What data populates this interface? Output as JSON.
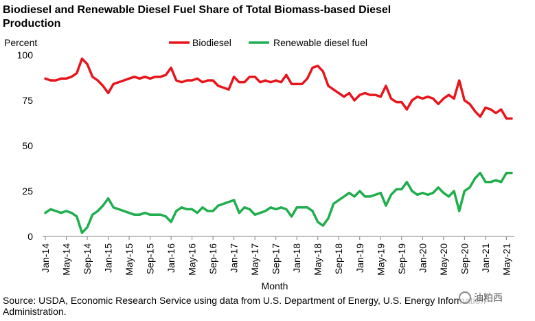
{
  "page": {
    "title": "Biodiesel and Renewable Diesel Fuel Share of Total Biomass-based Diesel Production",
    "source": "Source: USDA, Economic Research Service using data from U.S. Department of Energy, U.S. Energy Information Administration.",
    "watermark": "油粕西"
  },
  "chart_data": {
    "type": "line",
    "ylabel": "Percent",
    "xlabel": "Month",
    "ylim": [
      0,
      100
    ],
    "yticks": [
      0,
      25,
      50,
      75,
      100
    ],
    "grid": false,
    "legend_position": "top",
    "x_tick_labels": [
      "Jan-14",
      "May-14",
      "Sep-14",
      "Jan-15",
      "May-15",
      "Sep-15",
      "Jan-16",
      "May-16",
      "Sep-16",
      "Jan-17",
      "May-17",
      "Sep-17",
      "Jan-18",
      "May-18",
      "Sep-18",
      "Jan-19",
      "May-19",
      "Sep-19",
      "Jan-20",
      "May-20",
      "Sep-20",
      "Jan-21",
      "May-21"
    ],
    "x_start": "Jan-14",
    "x_end": "Oct-21",
    "series": [
      {
        "name": "Biodiesel",
        "color": "#e8141b",
        "values": [
          87,
          86,
          86,
          87,
          87,
          88,
          90,
          98,
          95,
          88,
          86,
          83,
          79,
          84,
          85,
          86,
          87,
          88,
          87,
          88,
          87,
          88,
          88,
          89,
          93,
          86,
          85,
          86,
          86,
          87,
          85,
          86,
          86,
          83,
          82,
          81,
          88,
          85,
          85,
          88,
          88,
          85,
          86,
          85,
          86,
          85,
          89,
          84,
          84,
          84,
          87,
          93,
          94,
          91,
          83,
          81,
          79,
          77,
          79,
          75,
          78,
          79,
          78,
          78,
          77,
          83,
          76,
          74,
          74,
          70,
          75,
          77,
          76,
          77,
          76,
          73,
          76,
          78,
          76,
          86,
          75,
          73,
          69,
          66,
          71,
          70,
          68,
          70,
          65,
          65
        ],
        "x_start": "Jan-14"
      },
      {
        "name": "Renewable diesel fuel",
        "color": "#1fae4d",
        "values": [
          13,
          15,
          14,
          13,
          14,
          13,
          11,
          2,
          5,
          12,
          14,
          17,
          21,
          16,
          15,
          14,
          13,
          12,
          12,
          13,
          12,
          12,
          12,
          11,
          8,
          14,
          16,
          15,
          15,
          13,
          16,
          14,
          14,
          17,
          18,
          19,
          20,
          13,
          16,
          15,
          12,
          13,
          14,
          16,
          15,
          16,
          15,
          11,
          16,
          16,
          16,
          14,
          8,
          6,
          10,
          18,
          20,
          22,
          24,
          22,
          25,
          22,
          22,
          23,
          24,
          17,
          23,
          26,
          26,
          30,
          25,
          23,
          24,
          23,
          24,
          27,
          24,
          22,
          25,
          14,
          25,
          27,
          32,
          35,
          30,
          30,
          31,
          30,
          35,
          35
        ],
        "x_start": "Jan-14"
      }
    ]
  }
}
